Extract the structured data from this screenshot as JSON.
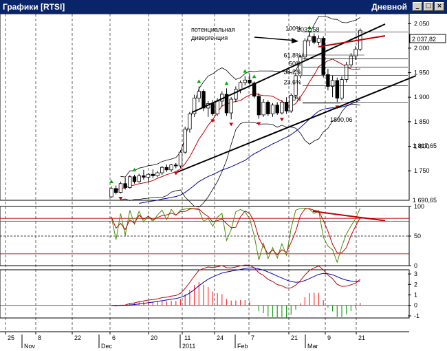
{
  "window": {
    "title": "Графики [RTSI]",
    "period": "Дневной",
    "buttons": {
      "minimize": "_",
      "maximize": "□",
      "close": "×"
    }
  },
  "chart_data": {
    "type": "candlestick",
    "price_panel": {
      "ylim": [
        1690,
        2070
      ],
      "y_ticks": [
        "2 050",
        "2 000",
        "1 950",
        "1 900",
        "1 850",
        "1 800",
        "1 750"
      ],
      "last_price": "2 037,82",
      "marker_labels": [
        "1 817,65",
        "1 690,65"
      ],
      "annotations": {
        "divergence": [
          "потенциальная",
          "дивергенция"
        ],
        "peak_value": "2032,58",
        "trough_value": "1890,06"
      },
      "fib_levels": [
        {
          "label": "100%",
          "value": 2032.58
        },
        {
          "label": "61.8%",
          "value": 1978.3
        },
        {
          "label": "50%",
          "value": 1961.3
        },
        {
          "label": "38.2%",
          "value": 1944.6
        },
        {
          "label": "23.6%",
          "value": 1923.7
        },
        {
          "label": "0%",
          "value": 1890.06
        }
      ],
      "candles": [
        {
          "o": 1697,
          "h": 1718,
          "l": 1695,
          "c": 1714
        },
        {
          "o": 1714,
          "h": 1720,
          "l": 1702,
          "c": 1706
        },
        {
          "o": 1706,
          "h": 1728,
          "l": 1704,
          "c": 1724
        },
        {
          "o": 1724,
          "h": 1736,
          "l": 1712,
          "c": 1716
        },
        {
          "o": 1716,
          "h": 1741,
          "l": 1714,
          "c": 1738
        },
        {
          "o": 1738,
          "h": 1742,
          "l": 1724,
          "c": 1728
        },
        {
          "o": 1728,
          "h": 1744,
          "l": 1726,
          "c": 1740
        },
        {
          "o": 1740,
          "h": 1752,
          "l": 1732,
          "c": 1737
        },
        {
          "o": 1737,
          "h": 1745,
          "l": 1726,
          "c": 1743
        },
        {
          "o": 1743,
          "h": 1753,
          "l": 1735,
          "c": 1740
        },
        {
          "o": 1740,
          "h": 1750,
          "l": 1737,
          "c": 1746
        },
        {
          "o": 1746,
          "h": 1760,
          "l": 1742,
          "c": 1757
        },
        {
          "o": 1757,
          "h": 1763,
          "l": 1748,
          "c": 1752
        },
        {
          "o": 1752,
          "h": 1764,
          "l": 1748,
          "c": 1762
        },
        {
          "o": 1762,
          "h": 1766,
          "l": 1755,
          "c": 1760
        },
        {
          "o": 1760,
          "h": 1792,
          "l": 1756,
          "c": 1788
        },
        {
          "o": 1788,
          "h": 1840,
          "l": 1785,
          "c": 1835
        },
        {
          "o": 1835,
          "h": 1870,
          "l": 1828,
          "c": 1866
        },
        {
          "o": 1866,
          "h": 1905,
          "l": 1860,
          "c": 1898
        },
        {
          "o": 1898,
          "h": 1922,
          "l": 1890,
          "c": 1912
        },
        {
          "o": 1912,
          "h": 1916,
          "l": 1872,
          "c": 1878
        },
        {
          "o": 1878,
          "h": 1892,
          "l": 1860,
          "c": 1887
        },
        {
          "o": 1887,
          "h": 1894,
          "l": 1862,
          "c": 1866
        },
        {
          "o": 1866,
          "h": 1898,
          "l": 1862,
          "c": 1892
        },
        {
          "o": 1892,
          "h": 1912,
          "l": 1880,
          "c": 1906
        },
        {
          "o": 1906,
          "h": 1918,
          "l": 1862,
          "c": 1868
        },
        {
          "o": 1868,
          "h": 1900,
          "l": 1855,
          "c": 1896
        },
        {
          "o": 1896,
          "h": 1922,
          "l": 1890,
          "c": 1916
        },
        {
          "o": 1916,
          "h": 1934,
          "l": 1908,
          "c": 1930
        },
        {
          "o": 1930,
          "h": 1943,
          "l": 1924,
          "c": 1935
        },
        {
          "o": 1935,
          "h": 1948,
          "l": 1925,
          "c": 1929
        },
        {
          "o": 1929,
          "h": 1932,
          "l": 1898,
          "c": 1902
        },
        {
          "o": 1902,
          "h": 1908,
          "l": 1856,
          "c": 1864
        },
        {
          "o": 1864,
          "h": 1896,
          "l": 1860,
          "c": 1890
        },
        {
          "o": 1890,
          "h": 1894,
          "l": 1862,
          "c": 1866
        },
        {
          "o": 1866,
          "h": 1888,
          "l": 1860,
          "c": 1884
        },
        {
          "o": 1884,
          "h": 1890,
          "l": 1864,
          "c": 1868
        },
        {
          "o": 1868,
          "h": 1894,
          "l": 1865,
          "c": 1890
        },
        {
          "o": 1890,
          "h": 1900,
          "l": 1866,
          "c": 1872
        },
        {
          "o": 1872,
          "h": 1908,
          "l": 1868,
          "c": 1904
        },
        {
          "o": 1904,
          "h": 1950,
          "l": 1898,
          "c": 1944
        },
        {
          "o": 1944,
          "h": 1986,
          "l": 1938,
          "c": 1982
        },
        {
          "o": 1982,
          "h": 2020,
          "l": 1976,
          "c": 2015
        },
        {
          "o": 2015,
          "h": 2032,
          "l": 2004,
          "c": 2024
        },
        {
          "o": 2024,
          "h": 2030,
          "l": 2008,
          "c": 2012
        },
        {
          "o": 2012,
          "h": 2026,
          "l": 2006,
          "c": 2020
        },
        {
          "o": 2020,
          "h": 2024,
          "l": 1940,
          "c": 1946
        },
        {
          "o": 1946,
          "h": 1958,
          "l": 1914,
          "c": 1922
        },
        {
          "o": 1922,
          "h": 1944,
          "l": 1900,
          "c": 1934
        },
        {
          "o": 1934,
          "h": 1940,
          "l": 1890,
          "c": 1898
        },
        {
          "o": 1898,
          "h": 1942,
          "l": 1894,
          "c": 1936
        },
        {
          "o": 1936,
          "h": 1972,
          "l": 1930,
          "c": 1966
        },
        {
          "o": 1966,
          "h": 1990,
          "l": 1960,
          "c": 1984
        },
        {
          "o": 1984,
          "h": 2004,
          "l": 1976,
          "c": 1998
        },
        {
          "o": 1998,
          "h": 2040,
          "l": 1994,
          "c": 2036
        }
      ]
    },
    "oscillator_panel": {
      "ylim": [
        0,
        100
      ],
      "y_ticks": [
        "100",
        "50",
        "0"
      ],
      "levels": [
        80,
        75,
        50,
        20
      ]
    },
    "macd_panel": {
      "ylim": [
        -1.2,
        3.4
      ],
      "y_ticks": [
        "3",
        "2",
        "1",
        "0",
        "-1"
      ]
    },
    "x_axis": {
      "day_ticks": [
        "25",
        "8",
        "22",
        "6",
        "20",
        "11",
        "24",
        "7",
        "21",
        "9",
        "21"
      ],
      "month_labels": [
        "Nov",
        "Dec",
        "2011",
        "Feb",
        "Mar"
      ]
    }
  }
}
